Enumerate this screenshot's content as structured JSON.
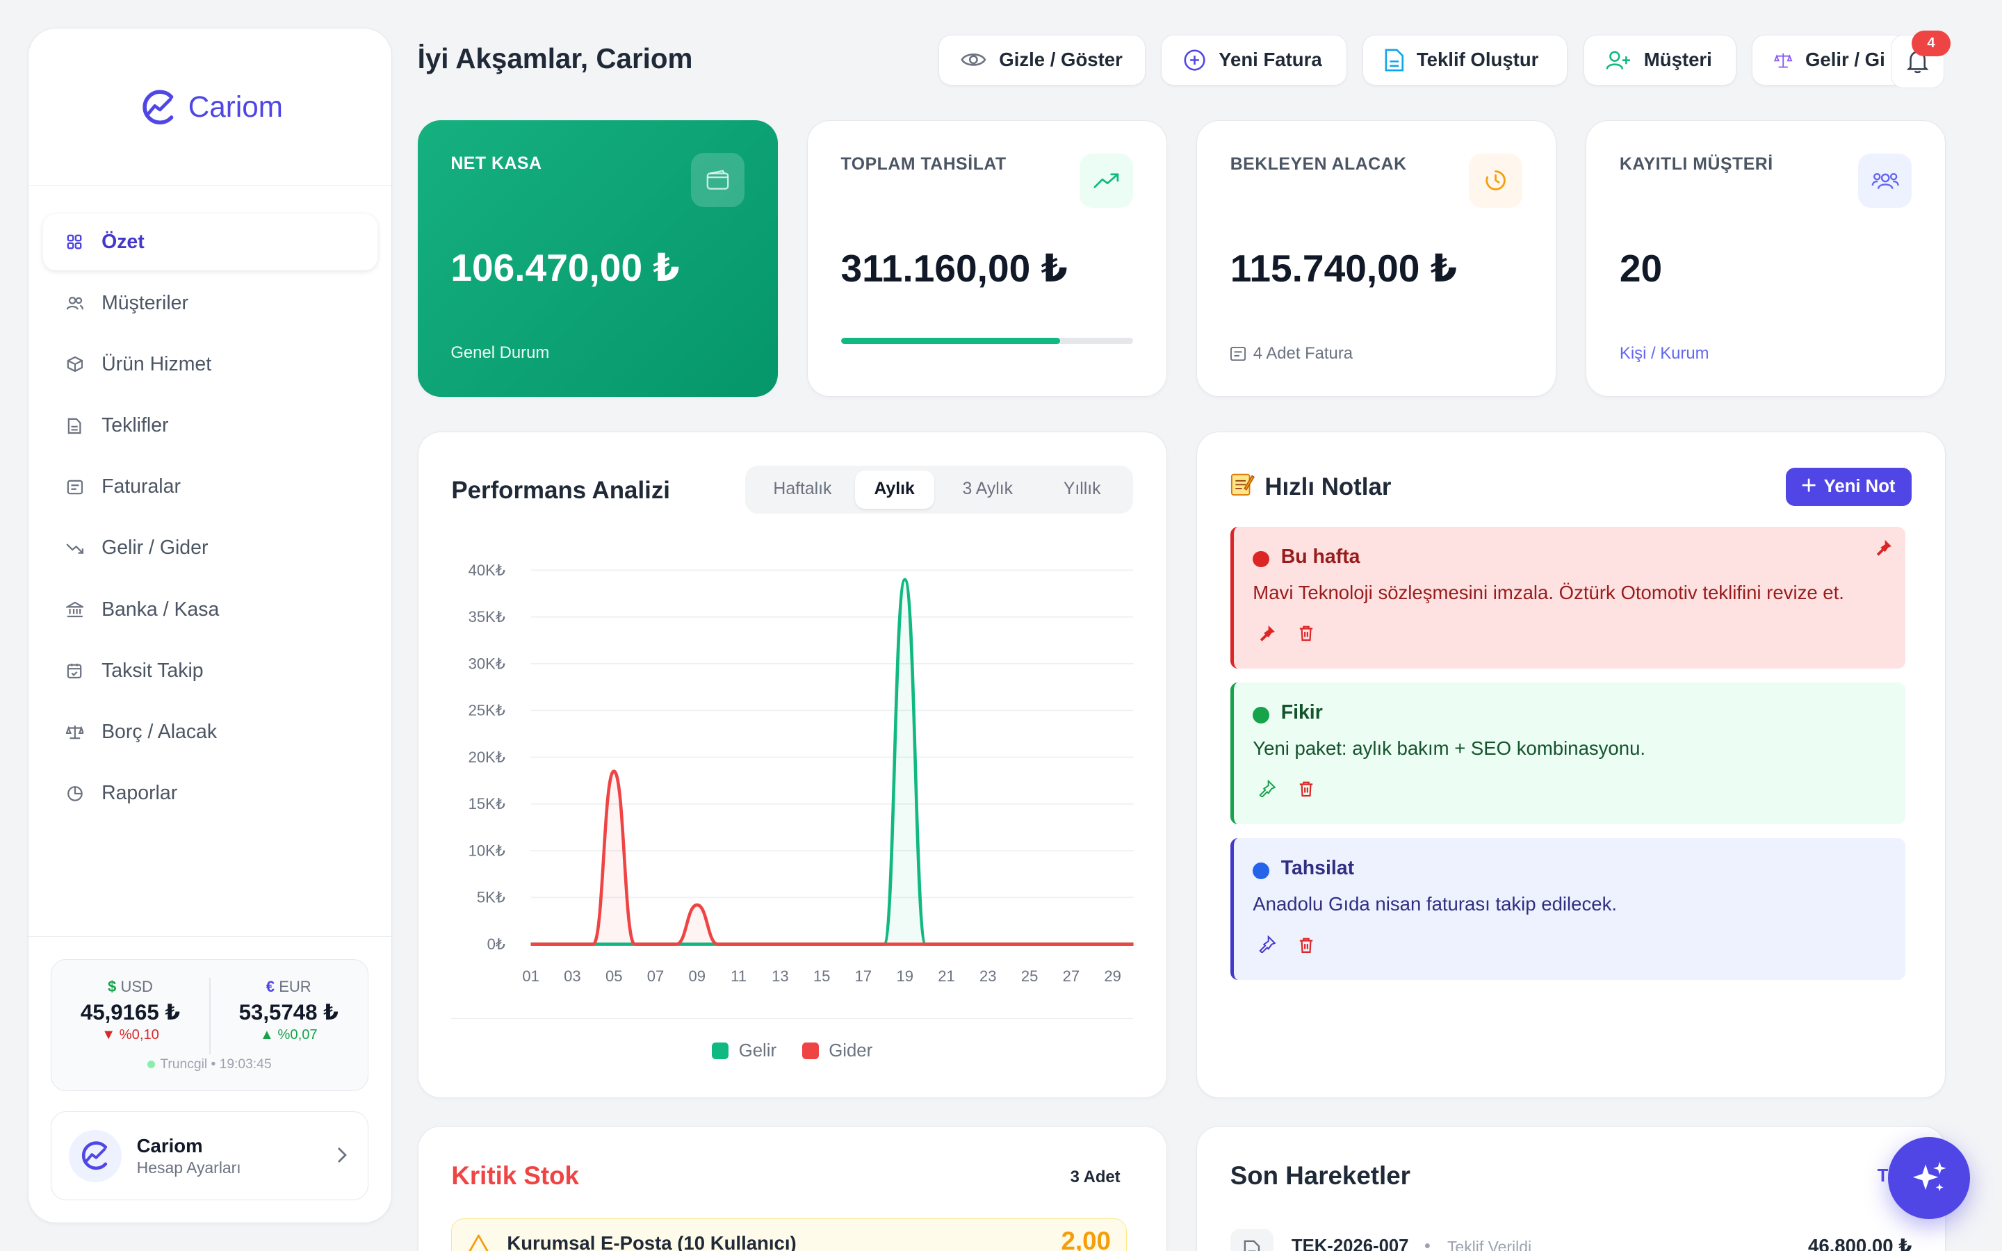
{
  "brand": {
    "name": "Cariom",
    "accent": "#4f46e5"
  },
  "header": {
    "greeting": "İyi Akşamlar, Cariom",
    "buttons": [
      {
        "label": "Gizle / Göster",
        "icon": "eye-icon"
      },
      {
        "label": "Yeni Fatura",
        "icon": "plus-circle-icon"
      },
      {
        "label": "Teklif Oluştur",
        "icon": "document-icon"
      },
      {
        "label": "Müşteri",
        "icon": "user-plus-icon"
      },
      {
        "label": "Gelir / Gi",
        "icon": "scale-icon"
      }
    ],
    "notifications_count": "4"
  },
  "sidebar": {
    "items": [
      {
        "label": "Özet",
        "icon": "grid-icon",
        "active": true
      },
      {
        "label": "Müşteriler",
        "icon": "users-icon"
      },
      {
        "label": "Ürün Hizmet",
        "icon": "box-icon"
      },
      {
        "label": "Teklifler",
        "icon": "document-icon"
      },
      {
        "label": "Faturalar",
        "icon": "invoice-icon"
      },
      {
        "label": "Gelir / Gider",
        "icon": "trend-down-icon"
      },
      {
        "label": "Banka / Kasa",
        "icon": "bank-icon"
      },
      {
        "label": "Taksit Takip",
        "icon": "calendar-icon"
      },
      {
        "label": "Borç / Alacak",
        "icon": "scale-icon"
      },
      {
        "label": "Raporlar",
        "icon": "pie-icon"
      }
    ],
    "fx": {
      "usd": {
        "symbol": "$",
        "code": "USD",
        "value": "45,9165 ₺",
        "change": "%0,10",
        "direction": "down"
      },
      "eur": {
        "symbol": "€",
        "code": "EUR",
        "value": "53,5748 ₺",
        "change": "%0,07",
        "direction": "up"
      },
      "source": "Truncgil • 19:03:45"
    },
    "account": {
      "name": "Cariom",
      "subtitle": "Hesap Ayarları"
    }
  },
  "stats": [
    {
      "label": "NET KASA",
      "value": "106.470,00 ₺",
      "footer": "Genel Durum",
      "icon": "wallet-icon"
    },
    {
      "label": "TOPLAM TAHSİLAT",
      "value": "311.160,00 ₺",
      "progress": 0.75,
      "icon": "trend-up-icon"
    },
    {
      "label": "BEKLEYEN ALACAK",
      "value": "115.740,00 ₺",
      "footer": "4 Adet Fatura",
      "icon": "clock-icon"
    },
    {
      "label": "KAYITLI MÜŞTERİ",
      "value": "20",
      "footer": "Kişi / Kurum",
      "icon": "users-icon"
    }
  ],
  "performance": {
    "title": "Performans Analizi",
    "tabs": [
      "Haftalık",
      "Aylık",
      "3 Aylık",
      "Yıllık"
    ],
    "active_tab": "Aylık"
  },
  "chart_data": {
    "type": "line",
    "x": [
      "01",
      "02",
      "03",
      "04",
      "05",
      "06",
      "07",
      "08",
      "09",
      "10",
      "11",
      "12",
      "13",
      "14",
      "15",
      "16",
      "17",
      "18",
      "19",
      "20",
      "21",
      "22",
      "23",
      "24",
      "25",
      "26",
      "27",
      "28",
      "29",
      "30"
    ],
    "x_tick_labels": [
      "01",
      "03",
      "05",
      "07",
      "09",
      "11",
      "13",
      "15",
      "17",
      "19",
      "21",
      "23",
      "25",
      "27",
      "29"
    ],
    "y_tick_labels": [
      "0₺",
      "5K₺",
      "10K₺",
      "15K₺",
      "20K₺",
      "25K₺",
      "30K₺",
      "35K₺",
      "40K₺"
    ],
    "ylim": [
      0,
      40000
    ],
    "grid": true,
    "legend": "bottom",
    "series": [
      {
        "name": "Gelir",
        "color": "#10b981",
        "values": [
          0,
          0,
          0,
          0,
          0,
          0,
          0,
          0,
          0,
          0,
          0,
          0,
          0,
          0,
          0,
          0,
          0,
          0,
          39000,
          0,
          0,
          0,
          0,
          0,
          0,
          0,
          0,
          0,
          0,
          0
        ]
      },
      {
        "name": "Gider",
        "color": "#ef4444",
        "values": [
          0,
          0,
          0,
          0,
          18500,
          0,
          0,
          0,
          4200,
          0,
          0,
          0,
          0,
          0,
          0,
          0,
          0,
          0,
          0,
          0,
          0,
          0,
          0,
          0,
          0,
          0,
          0,
          0,
          0,
          0
        ]
      }
    ]
  },
  "notes": {
    "title": "Hızlı Notlar",
    "new_label": "Yeni Not",
    "items": [
      {
        "title": "Bu hafta",
        "text": "Mavi Teknoloji sözleşmesini imzala. Öztürk Otomotiv teklifini revize et.",
        "pinned": true,
        "color": "#dc2626"
      },
      {
        "title": "Fikir",
        "text": "Yeni paket: aylık bakım + SEO kombinasyonu.",
        "pinned": false,
        "color": "#16a34a"
      },
      {
        "title": "Tahsilat",
        "text": "Anadolu Gıda nisan faturası takip edilecek.",
        "pinned": false,
        "color": "#2563eb"
      }
    ]
  },
  "stock": {
    "title": "Kritik Stok",
    "count": "3 Adet",
    "items": [
      {
        "name": "Kurumsal E-Posta (10 Kullanıcı)",
        "value": "2,00"
      }
    ]
  },
  "moves": {
    "title": "Son Hareketler",
    "all_label": "Tü",
    "items": [
      {
        "id": "TEK-2026-007",
        "status": "Teklif Verildi",
        "amount": "46.800,00 ₺"
      }
    ]
  }
}
